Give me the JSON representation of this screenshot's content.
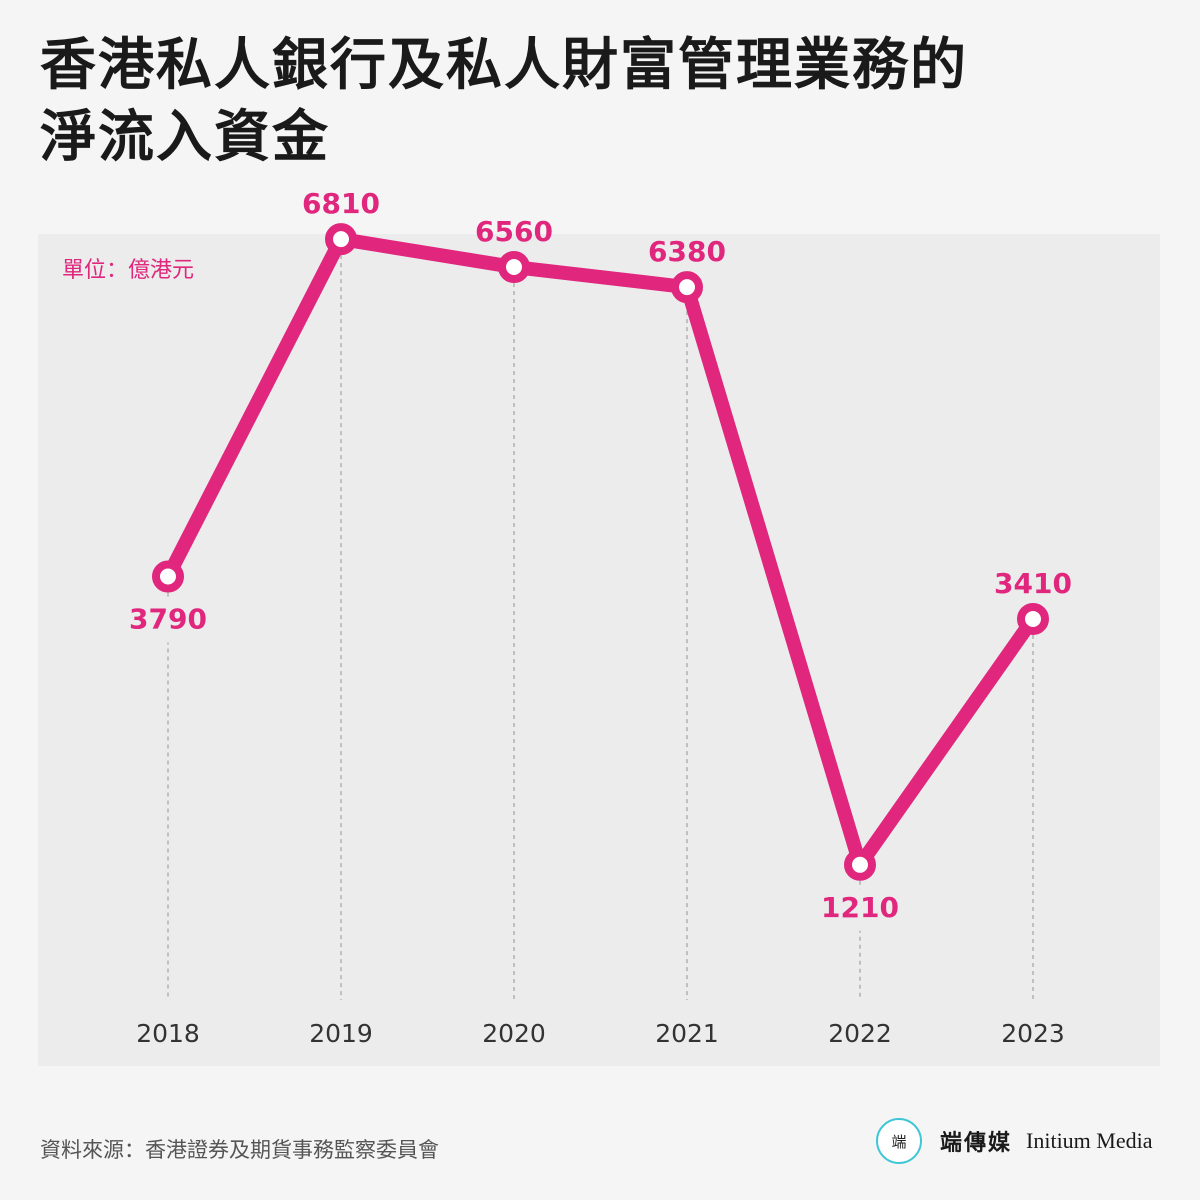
{
  "title": {
    "line1": "香港私人銀行及私人財富管理業務的",
    "line2": "淨流入資金"
  },
  "unit_label": "單位：億港元",
  "source": "資料來源：香港證券及期貨事務監察委員會",
  "brand": {
    "logo_icon": "initium-logo-icon",
    "logo_glyph": "端",
    "name_cn": "端傳媒",
    "name_en": "Initium Media"
  },
  "colors": {
    "accent": "#e0267d",
    "grid": "#b0b0b0",
    "tick_text": "#333333",
    "logo_ring": "#3ec6d6"
  },
  "chart_data": {
    "type": "line",
    "categories": [
      "2018",
      "2019",
      "2020",
      "2021",
      "2022",
      "2023"
    ],
    "values": [
      3790,
      6810,
      6560,
      6380,
      1210,
      3410
    ],
    "data_labels": [
      "3790",
      "6810",
      "6560",
      "6380",
      "1210",
      "3410"
    ],
    "label_position": [
      "below",
      "above",
      "above",
      "above",
      "below",
      "above"
    ],
    "title": "香港私人銀行及私人財富管理業務的淨流入資金",
    "xlabel": "",
    "ylabel": "單位：億港元",
    "ylim": [
      0,
      7500
    ],
    "grid": "vertical-dashed",
    "legend": "none"
  }
}
